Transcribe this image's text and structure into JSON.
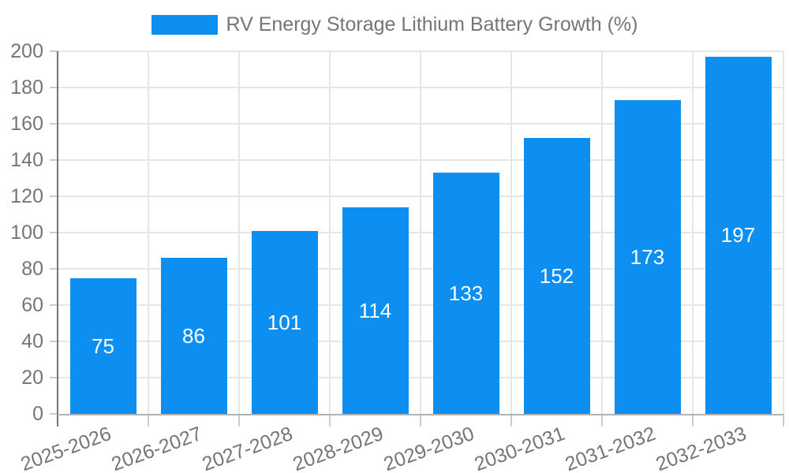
{
  "chart_data": {
    "type": "bar",
    "title": "RV Energy Storage Lithium Battery Growth (%)",
    "legend": [
      "RV Energy Storage Lithium Battery Growth (%)"
    ],
    "legend_position": "top-center",
    "categories": [
      "2025-2026",
      "2026-2027",
      "2027-2028",
      "2028-2029",
      "2029-2030",
      "2030-2031",
      "2031-2032",
      "2032-2033"
    ],
    "values": [
      75,
      86,
      101,
      114,
      133,
      152,
      173,
      197
    ],
    "value_labels_shown": true,
    "xlabel": "",
    "ylabel": "",
    "ylim": [
      0,
      200
    ],
    "ytick_step": 20,
    "yticks": [
      0,
      20,
      40,
      60,
      80,
      100,
      120,
      140,
      160,
      180,
      200
    ],
    "grid": "horizontal and vertical",
    "xaxis_label_rotation_deg": -20,
    "colors": {
      "bar": "#0d8ff2",
      "value_label": "#ffffff",
      "axis_text": "#757575",
      "gridline": "#e6e6e6",
      "y_axis_line": "#757575",
      "x_axis_line": "#b3b3b3",
      "tick": "#cccccc",
      "background": "#ffffff"
    }
  }
}
